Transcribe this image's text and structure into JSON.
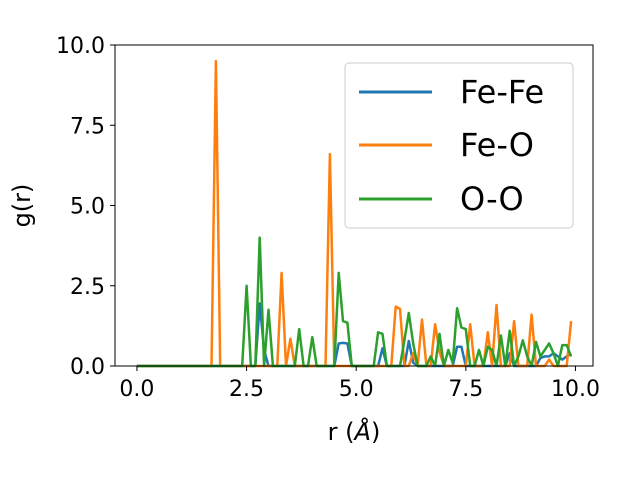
{
  "chart_data": {
    "type": "line",
    "xlabel": "r (Å)",
    "ylabel": "g(r)",
    "xlim": [
      -0.5,
      10.4
    ],
    "ylim": [
      0,
      10
    ],
    "x_ticks": [
      "0.0",
      "2.5",
      "5.0",
      "7.5",
      "10.0"
    ],
    "x_tick_values": [
      0,
      2.5,
      5,
      7.5,
      10
    ],
    "y_ticks": [
      "0.0",
      "2.5",
      "5.0",
      "7.5",
      "10.0"
    ],
    "y_tick_values": [
      0,
      2.5,
      5,
      7.5,
      10
    ],
    "legend_position": "top-right",
    "grid": false,
    "x": [
      0.0,
      0.1,
      0.2,
      0.3,
      0.4,
      0.5,
      0.6,
      0.7,
      0.8,
      0.9,
      1.0,
      1.1,
      1.2,
      1.3,
      1.4,
      1.5,
      1.6,
      1.7,
      1.8,
      1.9,
      2.0,
      2.1,
      2.2,
      2.3,
      2.4,
      2.5,
      2.6,
      2.7,
      2.8,
      2.9,
      3.0,
      3.1,
      3.2,
      3.3,
      3.4,
      3.5,
      3.6,
      3.7,
      3.8,
      3.9,
      4.0,
      4.1,
      4.2,
      4.3,
      4.4,
      4.5,
      4.6,
      4.7,
      4.8,
      4.9,
      5.0,
      5.1,
      5.2,
      5.3,
      5.4,
      5.5,
      5.6,
      5.7,
      5.8,
      5.9,
      6.0,
      6.1,
      6.2,
      6.3,
      6.4,
      6.5,
      6.6,
      6.7,
      6.8,
      6.9,
      7.0,
      7.1,
      7.2,
      7.3,
      7.4,
      7.5,
      7.6,
      7.7,
      7.8,
      7.9,
      8.0,
      8.1,
      8.2,
      8.3,
      8.4,
      8.5,
      8.6,
      8.7,
      8.8,
      8.9,
      9.0,
      9.1,
      9.2,
      9.3,
      9.4,
      9.5,
      9.6,
      9.7,
      9.8,
      9.9
    ],
    "series": [
      {
        "name": "Fe-Fe",
        "color": "#1f77b4",
        "values": [
          0,
          0,
          0,
          0,
          0,
          0,
          0,
          0,
          0,
          0,
          0,
          0,
          0,
          0,
          0,
          0,
          0,
          0,
          0,
          0,
          0,
          0,
          0,
          0,
          0,
          0,
          0,
          0,
          1.95,
          0.5,
          0,
          0,
          0,
          0,
          0,
          0,
          0,
          0,
          0,
          0,
          0,
          0,
          0,
          0,
          0,
          0,
          0.7,
          0.72,
          0.7,
          0,
          0,
          0,
          0,
          0,
          0,
          0,
          0.55,
          0,
          0,
          0,
          0,
          0,
          0.78,
          0.1,
          0,
          0,
          0,
          0,
          0,
          0,
          0,
          0,
          0,
          0.6,
          0.6,
          0,
          0,
          0,
          0,
          0,
          0,
          0,
          0,
          0,
          0,
          0.4,
          0,
          0,
          0,
          0,
          0,
          0,
          0.25,
          0.3,
          0.3,
          0.4,
          0.3,
          0.2,
          0.3,
          0.4
        ]
      },
      {
        "name": "Fe-O",
        "color": "#ff7f0e",
        "values": [
          0,
          0,
          0,
          0,
          0,
          0,
          0,
          0,
          0,
          0,
          0,
          0,
          0,
          0,
          0,
          0,
          0,
          0,
          9.5,
          0,
          0,
          0,
          0,
          0,
          0,
          0,
          0,
          0,
          0,
          0,
          0,
          0,
          0,
          2.9,
          0,
          0.85,
          0,
          0,
          0,
          0,
          0,
          0,
          0,
          0,
          6.6,
          0,
          0,
          0,
          0,
          0,
          0,
          0,
          0,
          0,
          0,
          0,
          0,
          0,
          0,
          1.85,
          1.78,
          0,
          0,
          0.4,
          0,
          1.45,
          0,
          0,
          1.3,
          0.45,
          0,
          0,
          0,
          0,
          0,
          0,
          1.3,
          0,
          0,
          0,
          1.05,
          0,
          1.9,
          0,
          0,
          0,
          1.4,
          0,
          0,
          0,
          1.6,
          0,
          0,
          0,
          0.2,
          0,
          0,
          0,
          0,
          1.4
        ]
      },
      {
        "name": "O-O",
        "color": "#2ca02c",
        "values": [
          0,
          0,
          0,
          0,
          0,
          0,
          0,
          0,
          0,
          0,
          0,
          0,
          0,
          0,
          0,
          0,
          0,
          0,
          0,
          0,
          0,
          0,
          0,
          0,
          0,
          2.5,
          0,
          0,
          4.0,
          0,
          1.75,
          0,
          0,
          0,
          0,
          0,
          0,
          1.15,
          0,
          0,
          0.9,
          0,
          0,
          0,
          0,
          0,
          2.9,
          1.4,
          1.35,
          0,
          0,
          0,
          0,
          0,
          0,
          1.05,
          1.0,
          0,
          0,
          0,
          0,
          0.8,
          1.65,
          0.7,
          0,
          0,
          0,
          0.3,
          0,
          1.0,
          0,
          0.5,
          0.1,
          1.8,
          1.2,
          1.15,
          0,
          0,
          0.5,
          0,
          0.6,
          0.5,
          0,
          0.95,
          0,
          1.1,
          0,
          0.3,
          0.8,
          0.3,
          0,
          0.75,
          0.3,
          0.5,
          0.7,
          0.4,
          0,
          0.65,
          0.65,
          0.3
        ]
      }
    ]
  }
}
